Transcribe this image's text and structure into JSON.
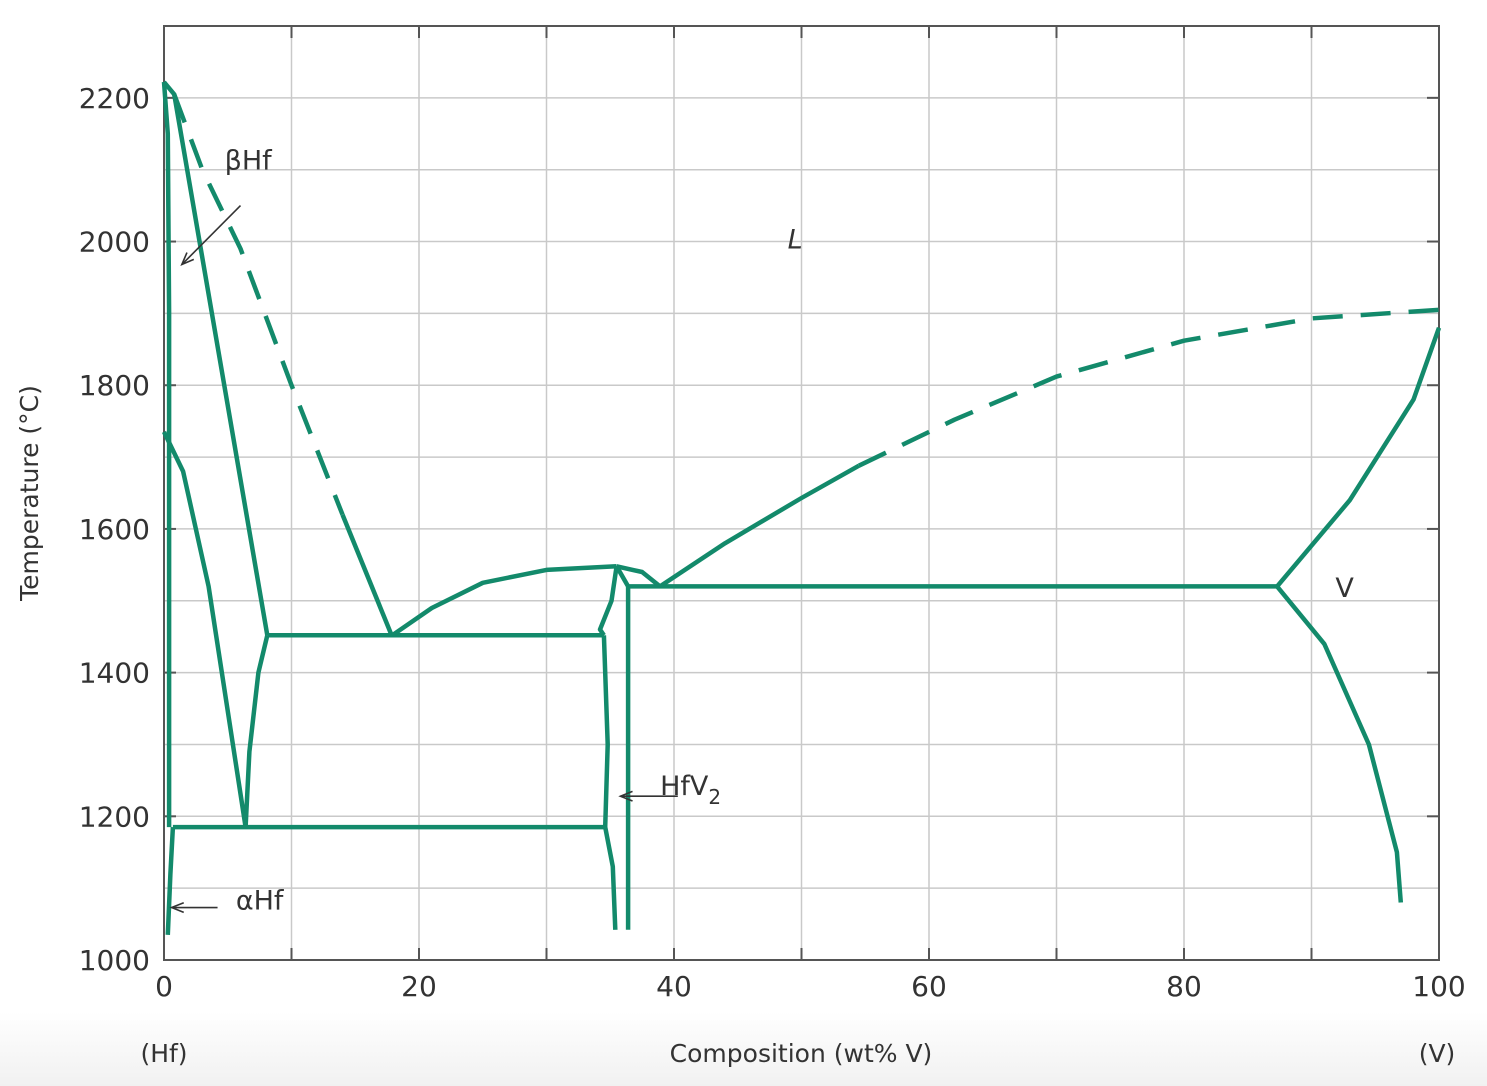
{
  "chart_data": {
    "type": "line",
    "title": "",
    "xlabel": "Composition (wt% V)",
    "ylabel": "Temperature (°C)",
    "xlim": [
      0,
      100
    ],
    "ylim": [
      1000,
      2300
    ],
    "x_ticks": [
      "0",
      "20",
      "40",
      "60",
      "80",
      "100"
    ],
    "y_ticks": [
      "1000",
      "1200",
      "1400",
      "1600",
      "1800",
      "2000",
      "2200"
    ],
    "grid": true,
    "x_end_labels": {
      "left": "(Hf)",
      "right": "(V)"
    },
    "line_color": "#138a6b",
    "phase_labels": [
      {
        "text": "L",
        "x": 49.5,
        "y": 1990
      },
      {
        "text": "V",
        "x": 92.6,
        "y": 1505
      },
      {
        "text": "βHf",
        "x": 6.6,
        "y": 2100
      },
      {
        "text": "αHf",
        "x": 7.5,
        "y": 1070
      },
      {
        "text": "HfV",
        "sub": "2",
        "x": 41.3,
        "y": 1230
      }
    ],
    "series": [
      {
        "style": "solid",
        "points": [
          [
            0,
            2222
          ],
          [
            0.8,
            2205
          ],
          [
            8.1,
            1452
          ]
        ]
      },
      {
        "style": "solid",
        "points": [
          [
            0,
            2222
          ],
          [
            0.3,
            2150
          ],
          [
            0.4,
            1900
          ],
          [
            0.4,
            1600
          ],
          [
            0.4,
            1400
          ],
          [
            0.4,
            1185
          ]
        ]
      },
      {
        "style": "dashed",
        "points": [
          [
            0.8,
            2205
          ],
          [
            3,
            2100
          ],
          [
            6,
            1990
          ],
          [
            10,
            1800
          ],
          [
            14,
            1620
          ]
        ]
      },
      {
        "style": "solid",
        "points": [
          [
            14,
            1620
          ],
          [
            17.9,
            1450
          ]
        ]
      },
      {
        "style": "solid",
        "points": [
          [
            8.1,
            1452
          ],
          [
            34.5,
            1452
          ]
        ]
      },
      {
        "style": "solid",
        "points": [
          [
            17.9,
            1452
          ],
          [
            21,
            1490
          ],
          [
            25,
            1525
          ],
          [
            30,
            1543
          ],
          [
            35.5,
            1548
          ]
        ]
      },
      {
        "style": "solid",
        "points": [
          [
            35.5,
            1548
          ],
          [
            35.1,
            1500
          ],
          [
            34.2,
            1460
          ],
          [
            34.5,
            1452
          ]
        ]
      },
      {
        "style": "solid",
        "points": [
          [
            34.5,
            1452
          ],
          [
            34.6,
            1400
          ],
          [
            34.8,
            1300
          ],
          [
            34.6,
            1185
          ]
        ]
      },
      {
        "style": "solid",
        "points": [
          [
            34.6,
            1185
          ],
          [
            35.2,
            1130
          ],
          [
            35.4,
            1042
          ]
        ]
      },
      {
        "style": "solid",
        "points": [
          [
            35.5,
            1548
          ],
          [
            36.4,
            1520
          ],
          [
            36.4,
            1042
          ]
        ]
      },
      {
        "style": "solid",
        "points": [
          [
            35.5,
            1548
          ],
          [
            37.5,
            1540
          ],
          [
            38.9,
            1520
          ]
        ]
      },
      {
        "style": "solid",
        "points": [
          [
            36.4,
            1520
          ],
          [
            87.3,
            1520
          ]
        ]
      },
      {
        "style": "solid",
        "points": [
          [
            38.9,
            1520
          ],
          [
            44,
            1580
          ],
          [
            50,
            1643
          ],
          [
            54.5,
            1688
          ]
        ]
      },
      {
        "style": "dashed",
        "points": [
          [
            54.5,
            1688
          ],
          [
            62,
            1752
          ],
          [
            70,
            1812
          ],
          [
            80,
            1862
          ],
          [
            90,
            1893
          ],
          [
            100,
            1905
          ]
        ]
      },
      {
        "style": "solid",
        "points": [
          [
            87.3,
            1520
          ],
          [
            93,
            1640
          ],
          [
            98,
            1780
          ],
          [
            100,
            1880
          ]
        ]
      },
      {
        "style": "solid",
        "points": [
          [
            87.3,
            1520
          ],
          [
            91,
            1440
          ],
          [
            94.5,
            1300
          ],
          [
            96.7,
            1150
          ],
          [
            97,
            1080
          ]
        ]
      },
      {
        "style": "solid",
        "points": [
          [
            0,
            1735
          ],
          [
            1.5,
            1680
          ],
          [
            3.5,
            1520
          ],
          [
            6.4,
            1185
          ]
        ]
      },
      {
        "style": "solid",
        "points": [
          [
            6.4,
            1185
          ],
          [
            6.7,
            1290
          ],
          [
            7.4,
            1400
          ],
          [
            8.1,
            1452
          ]
        ]
      },
      {
        "style": "solid",
        "points": [
          [
            0.7,
            1185
          ],
          [
            34.6,
            1185
          ]
        ]
      },
      {
        "style": "solid",
        "points": [
          [
            0.7,
            1185
          ],
          [
            0.5,
            1120
          ],
          [
            0.3,
            1035
          ]
        ]
      }
    ],
    "arrows": [
      {
        "from": [
          6.0,
          2050
        ],
        "to": [
          1.4,
          1968
        ]
      },
      {
        "from": [
          4.2,
          1073
        ],
        "to": [
          0.6,
          1073
        ]
      },
      {
        "from": [
          40.3,
          1228
        ],
        "to": [
          35.8,
          1228
        ]
      }
    ]
  }
}
